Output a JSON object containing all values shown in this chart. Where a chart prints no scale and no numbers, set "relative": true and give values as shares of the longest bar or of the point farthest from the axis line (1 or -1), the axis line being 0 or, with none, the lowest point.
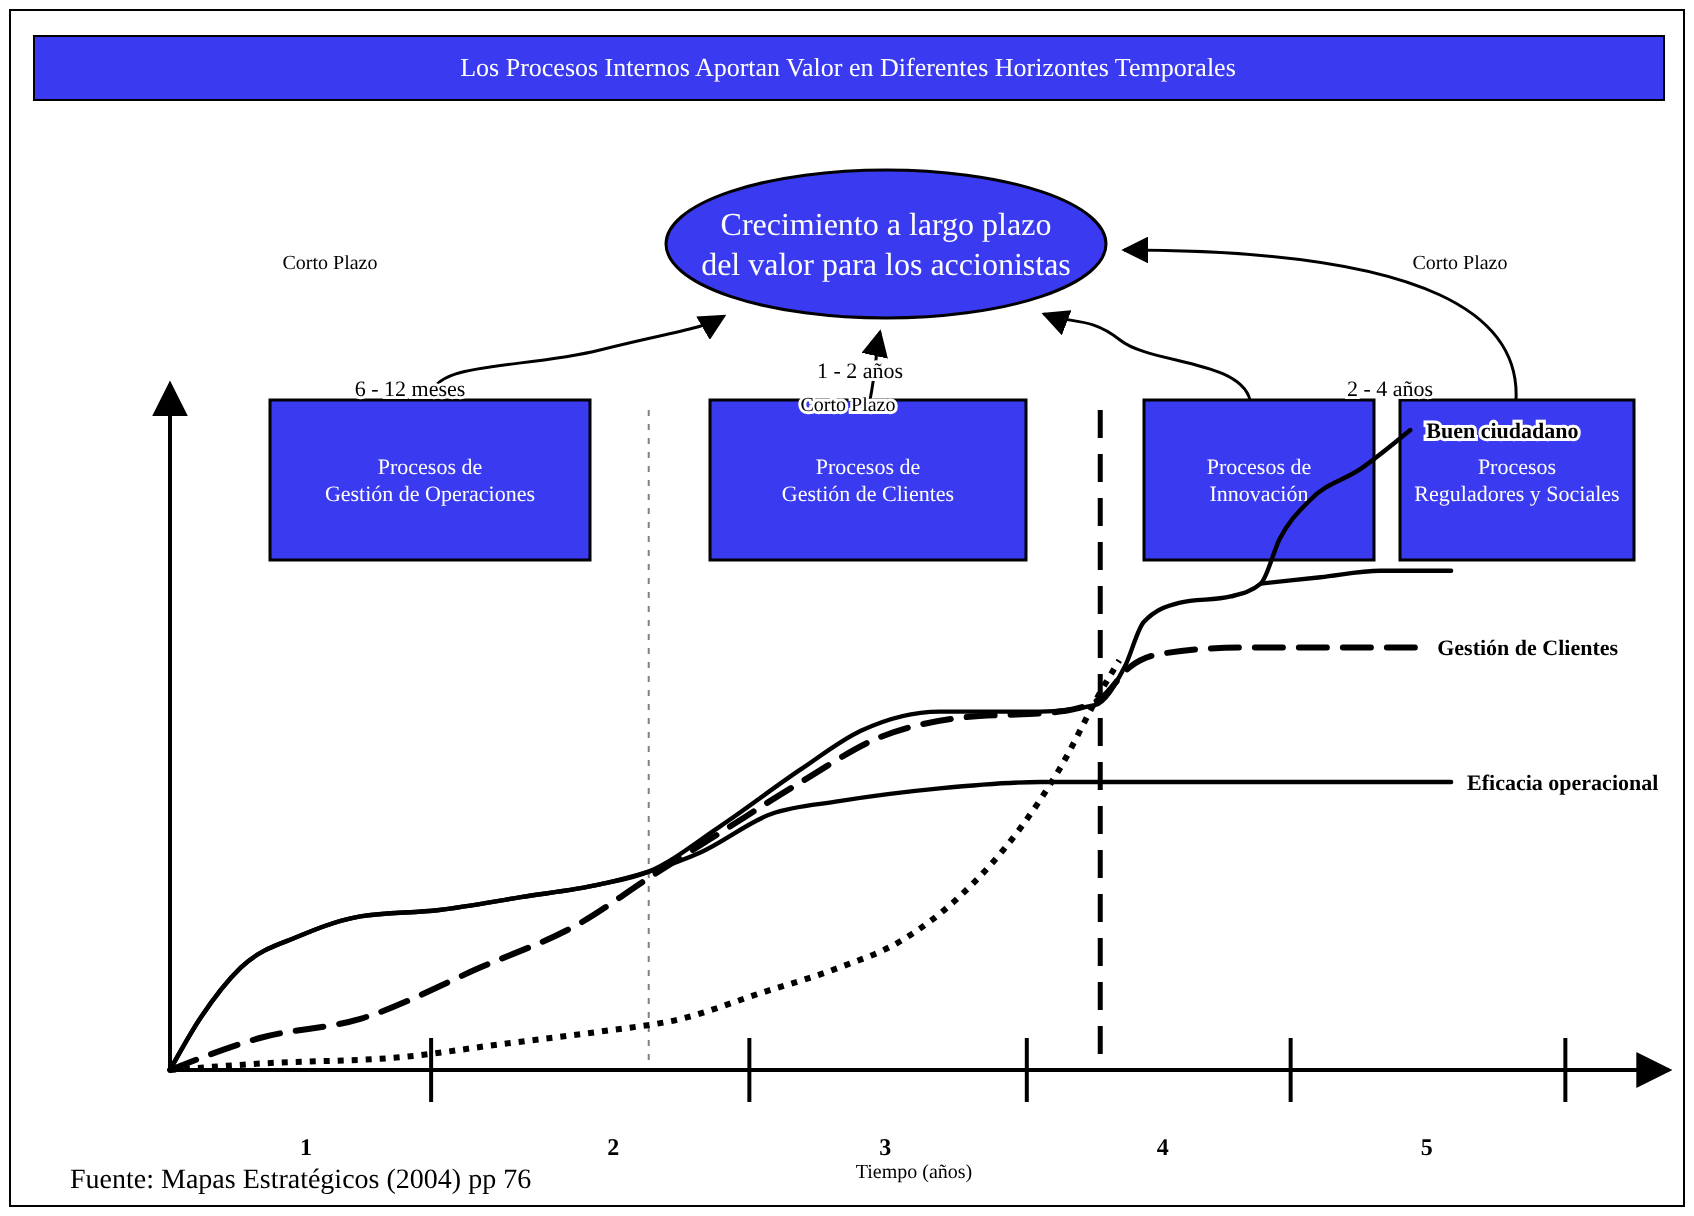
{
  "chart_data": {
    "type": "line",
    "title": "Los Procesos Internos Aportan  Valor en Diferentes Horizontes Temporales",
    "xlabel": "Tiempo (años)",
    "relative": true,
    "xlim": [
      0,
      5.51
    ],
    "xticks": [
      {
        "value": 0.5,
        "label": "1"
      },
      {
        "value": 0.96,
        "label": null
      },
      {
        "value": 1.63,
        "label": "2"
      },
      {
        "value": 2.13,
        "label": null
      },
      {
        "value": 2.63,
        "label": "3"
      },
      {
        "value": 3.15,
        "label": null
      },
      {
        "value": 3.65,
        "label": "4"
      },
      {
        "value": 4.12,
        "label": null
      },
      {
        "value": 4.62,
        "label": "5"
      },
      {
        "value": 5.13,
        "label": null
      }
    ],
    "tick_labels": "x",
    "series": [
      {
        "name": "Eficacia operacional",
        "color": "#000000",
        "line_style": "solid",
        "x": [
          0,
          0.11,
          0.26,
          0.48,
          0.7,
          0.99,
          1.29,
          1.58,
          1.76,
          1.95,
          2.21,
          2.46,
          2.83,
          3.2,
          3.42,
          4.71
        ],
        "values": [
          0,
          0.08,
          0.16,
          0.21,
          0.24,
          0.25,
          0.27,
          0.29,
          0.31,
          0.34,
          0.4,
          0.42,
          0.44,
          0.45,
          0.45,
          0.45
        ]
      },
      {
        "name": "Gestión de Clientes",
        "color": "#000000",
        "line_style": "dashed",
        "x": [
          0,
          0.33,
          0.7,
          1.14,
          1.51,
          1.76,
          2.02,
          2.32,
          2.61,
          2.9,
          3.27,
          3.42,
          3.53,
          3.64,
          3.93,
          4.6
        ],
        "values": [
          0,
          0.05,
          0.08,
          0.16,
          0.23,
          0.3,
          0.37,
          0.45,
          0.52,
          0.55,
          0.56,
          0.58,
          0.63,
          0.65,
          0.66,
          0.66
        ]
      },
      {
        "color": "#000000",
        "line_style": "dotted",
        "x": [
          0,
          0.33,
          0.85,
          1.21,
          1.58,
          1.88,
          2.17,
          2.46,
          2.68,
          2.9,
          3.13,
          3.27,
          3.42,
          3.49
        ],
        "values": [
          0,
          0.01,
          0.02,
          0.04,
          0.06,
          0.08,
          0.12,
          0.16,
          0.2,
          0.27,
          0.38,
          0.47,
          0.59,
          0.64
        ]
      },
      {
        "name": "Buen ciudadano",
        "color": "#000000",
        "line_style": "solid",
        "x": [
          0,
          0.11,
          0.26,
          0.48,
          0.7,
          0.99,
          1.29,
          1.58,
          1.76,
          2.02,
          2.32,
          2.54,
          2.83,
          3.2,
          3.4,
          3.51,
          3.58,
          3.71,
          3.9,
          4.01,
          4.08,
          4.19,
          4.38,
          4.56
        ],
        "values": [
          0,
          0.08,
          0.16,
          0.21,
          0.24,
          0.25,
          0.27,
          0.29,
          0.31,
          0.38,
          0.47,
          0.53,
          0.56,
          0.56,
          0.57,
          0.63,
          0.7,
          0.73,
          0.74,
          0.76,
          0.83,
          0.89,
          0.94,
          1
        ]
      },
      {
        "color": "#000000",
        "line_style": "solid",
        "x": [
          4.01,
          4.23,
          4.45,
          4.71
        ],
        "values": [
          0.76,
          0.77,
          0.78,
          0.78
        ]
      }
    ],
    "ref_lines": [
      {
        "axis": "x",
        "value": 1.76,
        "color": "#808080",
        "line_style": "dotted"
      },
      {
        "axis": "x",
        "value": 3.42,
        "color": "#000000",
        "line_style": "dashed"
      }
    ],
    "annotations": [
      "Crecimiento a largo plazo\ndel valor para los accionistas",
      "Procesos de\nGestión de Operaciones",
      "Procesos de\nGestión de Clientes",
      "Procesos de\nInnovación",
      "Procesos\nReguladores y Sociales",
      "Corto Plazo",
      "Corto Plazo",
      "Corto Plazo",
      "6 - 12 meses",
      "1 - 2 años",
      "2 - 4 años",
      "Fuente: Mapas Estratégicos (2004) pp 76"
    ]
  }
}
